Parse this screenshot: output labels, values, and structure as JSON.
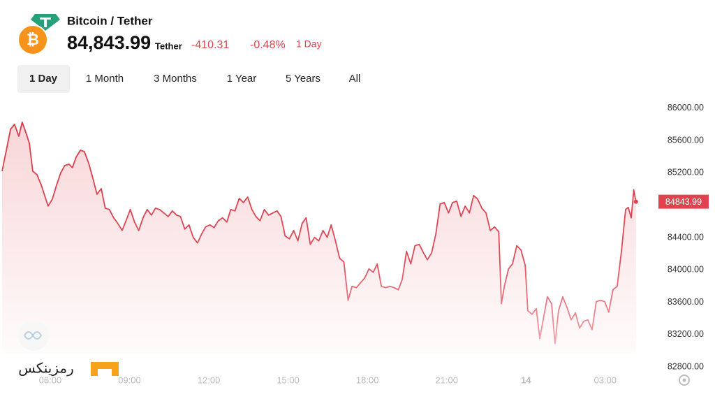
{
  "header": {
    "title": "Bitcoin / Tether",
    "price": "84,843.99",
    "unit": "Tether",
    "change": "-410.31",
    "change_percent": "-0.48%",
    "period": "1 Day"
  },
  "tabs": [
    "1 Day",
    "1 Month",
    "3 Months",
    "1 Year",
    "5 Years",
    "All"
  ],
  "watermark": "رمزینکس",
  "chart_data": {
    "type": "line",
    "color": "#e0434f",
    "grid": false,
    "x": [
      4.18,
      4.34,
      4.5,
      4.65,
      4.81,
      4.94,
      5.08,
      5.21,
      5.34,
      5.5,
      5.66,
      5.79,
      5.92,
      6.08,
      6.24,
      6.4,
      6.55,
      6.71,
      6.84,
      6.98,
      7.14,
      7.29,
      7.45,
      7.61,
      7.77,
      7.93,
      8.08,
      8.24,
      8.4,
      8.56,
      8.72,
      8.88,
      9.03,
      9.19,
      9.35,
      9.51,
      9.67,
      9.83,
      9.98,
      10.14,
      10.3,
      10.46,
      10.62,
      10.78,
      10.93,
      11.09,
      11.25,
      11.41,
      11.57,
      11.73,
      11.88,
      12.04,
      12.2,
      12.36,
      12.52,
      12.68,
      12.83,
      12.99,
      13.15,
      13.31,
      13.47,
      13.63,
      13.78,
      13.94,
      14.1,
      14.26,
      14.42,
      14.58,
      14.73,
      14.89,
      15.05,
      15.21,
      15.37,
      15.53,
      15.68,
      15.84,
      16.0,
      16.16,
      16.32,
      16.48,
      16.63,
      16.79,
      16.95,
      17.11,
      17.27,
      17.42,
      17.58,
      17.74,
      17.9,
      18.06,
      18.22,
      18.37,
      18.53,
      18.69,
      18.85,
      19.01,
      19.17,
      19.32,
      19.48,
      19.64,
      19.8,
      19.96,
      20.12,
      20.27,
      20.43,
      20.59,
      20.75,
      20.91,
      21.07,
      21.22,
      21.38,
      21.54,
      21.7,
      21.86,
      22.02,
      22.17,
      22.33,
      22.49,
      22.65,
      22.81,
      22.97,
      23.07,
      23.18,
      23.34,
      23.49,
      23.65,
      23.81,
      23.97,
      24.07,
      24.23,
      24.39,
      24.52,
      24.65,
      24.81,
      24.97,
      25.1,
      25.23,
      25.39,
      25.55,
      25.71,
      25.87,
      26.03,
      26.18,
      26.34,
      26.5,
      26.66,
      26.82,
      26.98,
      27.13,
      27.29,
      27.45,
      27.61,
      27.77,
      27.87,
      27.98,
      28.08,
      28.16
    ],
    "values": [
      85222,
      85482,
      85741,
      85801,
      85654,
      85827,
      85698,
      85568,
      85222,
      85178,
      85049,
      84920,
      84790,
      84877,
      85049,
      85205,
      85291,
      85308,
      85265,
      85395,
      85481,
      85464,
      85326,
      85136,
      84937,
      85006,
      84764,
      84747,
      84644,
      84574,
      84488,
      84618,
      84747,
      84592,
      84488,
      84644,
      84747,
      84678,
      84764,
      84747,
      84704,
      84661,
      84730,
      84678,
      84661,
      84505,
      84557,
      84402,
      84333,
      84445,
      84532,
      84557,
      84523,
      84609,
      84644,
      84592,
      84747,
      84730,
      84885,
      84833,
      84902,
      84747,
      84661,
      84609,
      84747,
      84678,
      84704,
      84730,
      84661,
      84419,
      84385,
      84488,
      84359,
      84575,
      84644,
      84316,
      84402,
      84359,
      84488,
      84402,
      84557,
      84359,
      84143,
      84099,
      83624,
      83797,
      83780,
      83840,
      83901,
      84013,
      83970,
      84074,
      83797,
      83780,
      83797,
      83780,
      83754,
      83884,
      84229,
      84074,
      84299,
      84316,
      84212,
      84126,
      84212,
      84445,
      84816,
      84833,
      84704,
      84833,
      84850,
      84661,
      84790,
      84704,
      84920,
      84877,
      84764,
      84704,
      84488,
      84532,
      84471,
      83581,
      83797,
      84013,
      84074,
      84299,
      84246,
      84056,
      83494,
      83451,
      83520,
      83149,
      83382,
      83667,
      83581,
      83089,
      83494,
      83667,
      83537,
      83382,
      83468,
      83278,
      83364,
      83382,
      83261,
      83607,
      83624,
      83607,
      83477,
      83754,
      83797,
      84229,
      84747,
      84773,
      84644,
      84989,
      84843.99
    ],
    "xlim": [
      4.1,
      28.8
    ],
    "xticks": [
      {
        "value": 6,
        "label": "06:00"
      },
      {
        "value": 9,
        "label": "09:00"
      },
      {
        "value": 12,
        "label": "12:00"
      },
      {
        "value": 15,
        "label": "15:00"
      },
      {
        "value": 18,
        "label": "18:00"
      },
      {
        "value": 21,
        "label": "21:00"
      },
      {
        "value": 24,
        "label": "14"
      },
      {
        "value": 27,
        "label": "03:00"
      }
    ],
    "ylim": [
      82800,
      86200
    ],
    "yticks": [
      {
        "value": 82800,
        "label": "82800.00"
      },
      {
        "value": 83200,
        "label": "83200.00"
      },
      {
        "value": 83600,
        "label": "83600.00"
      },
      {
        "value": 84000,
        "label": "84000.00"
      },
      {
        "value": 84400,
        "label": "84400.00"
      },
      {
        "value": 84800,
        "label": "84800.00"
      },
      {
        "value": 85200,
        "label": "85200.00"
      },
      {
        "value": 85600,
        "label": "85600.00"
      },
      {
        "value": 86000,
        "label": "86000.00"
      }
    ]
  }
}
